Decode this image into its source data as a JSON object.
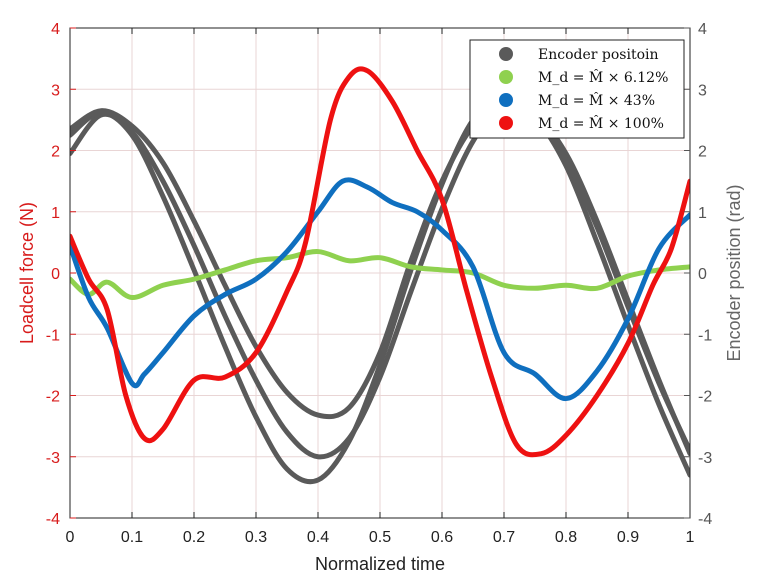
{
  "chart_data": {
    "type": "line",
    "xlabel": "Normalized time",
    "ylabel_left": "Loadcell force (N)",
    "ylabel_right": "Encoder position (rad)",
    "xlim": [
      0,
      1
    ],
    "ylim_left": [
      -4,
      4
    ],
    "ylim_right": [
      -4,
      4
    ],
    "xticks": [
      "0",
      "0.1",
      "0.2",
      "0.3",
      "0.4",
      "0.5",
      "0.6",
      "0.7",
      "0.8",
      "0.9",
      "1"
    ],
    "yticks_left": [
      "4",
      "3",
      "2",
      "1",
      "0",
      "-1",
      "-2",
      "-3",
      "-4"
    ],
    "yticks_right": [
      "4",
      "3",
      "2",
      "1",
      "0",
      "-1",
      "-2",
      "-3",
      "-4"
    ],
    "grid": true,
    "legend_position": "top-right",
    "legend": [
      {
        "label": "Encoder positoin",
        "color": "#5a5a5a"
      },
      {
        "label": "M_d = M̂ × 6.12%",
        "color": "#8fd14f"
      },
      {
        "label": "M_d = M̂ × 43%",
        "color": "#0f6fbf"
      },
      {
        "label": "M_d = M̂ × 100%",
        "color": "#ee1111"
      }
    ],
    "series": [
      {
        "axis": "right",
        "color": "#5a5a5a",
        "x": [
          0,
          0.05,
          0.1,
          0.15,
          0.2,
          0.25,
          0.3,
          0.35,
          0.4,
          0.45,
          0.5,
          0.55,
          0.6,
          0.65,
          0.7,
          0.75,
          0.8,
          0.85,
          0.9,
          0.95,
          1
        ],
        "values": [
          1.95,
          2.58,
          2.3,
          1.5,
          0.45,
          -0.7,
          -1.75,
          -2.6,
          -3.0,
          -2.7,
          -1.7,
          -0.3,
          1.05,
          2.15,
          2.75,
          2.6,
          1.95,
          0.85,
          -0.45,
          -1.75,
          -2.95
        ]
      },
      {
        "axis": "right",
        "color": "#5a5a5a",
        "x": [
          0,
          0.05,
          0.1,
          0.15,
          0.2,
          0.25,
          0.3,
          0.35,
          0.4,
          0.45,
          0.5,
          0.55,
          0.6,
          0.65,
          0.7,
          0.75,
          0.8,
          0.85,
          0.9,
          0.95,
          1
        ],
        "values": [
          2.25,
          2.62,
          2.25,
          1.25,
          0.05,
          -1.2,
          -2.35,
          -3.2,
          -3.38,
          -2.75,
          -1.5,
          0.05,
          1.45,
          2.5,
          2.9,
          2.55,
          1.75,
          0.5,
          -0.85,
          -2.15,
          -3.3
        ]
      },
      {
        "axis": "right",
        "color": "#5a5a5a",
        "x": [
          0,
          0.05,
          0.1,
          0.15,
          0.2,
          0.25,
          0.3,
          0.35,
          0.4,
          0.45,
          0.5,
          0.55,
          0.6,
          0.65,
          0.7,
          0.75,
          0.8,
          0.85,
          0.9,
          0.95,
          1
        ],
        "values": [
          2.35,
          2.65,
          2.4,
          1.8,
          0.85,
          -0.2,
          -1.2,
          -1.95,
          -2.32,
          -2.2,
          -1.3,
          0.2,
          1.5,
          2.4,
          2.75,
          2.5,
          1.85,
          0.75,
          -0.55,
          -1.8,
          -2.9
        ]
      },
      {
        "axis": "left",
        "name": "M_d = M̂ × 6.12%",
        "color": "#8fd14f",
        "x": [
          0,
          0.03,
          0.06,
          0.1,
          0.15,
          0.2,
          0.25,
          0.3,
          0.35,
          0.4,
          0.45,
          0.5,
          0.55,
          0.6,
          0.65,
          0.7,
          0.75,
          0.8,
          0.85,
          0.9,
          0.95,
          1
        ],
        "values": [
          -0.1,
          -0.35,
          -0.15,
          -0.4,
          -0.2,
          -0.1,
          0.05,
          0.2,
          0.25,
          0.35,
          0.2,
          0.25,
          0.1,
          0.05,
          0.0,
          -0.2,
          -0.25,
          -0.2,
          -0.25,
          -0.05,
          0.05,
          0.1
        ]
      },
      {
        "axis": "left",
        "name": "M_d = M̂ × 43%",
        "color": "#0f6fbf",
        "x": [
          0,
          0.03,
          0.06,
          0.1,
          0.12,
          0.15,
          0.2,
          0.25,
          0.3,
          0.35,
          0.4,
          0.44,
          0.48,
          0.52,
          0.56,
          0.6,
          0.65,
          0.7,
          0.75,
          0.8,
          0.85,
          0.9,
          0.95,
          1
        ],
        "values": [
          0.45,
          -0.4,
          -0.9,
          -1.8,
          -1.65,
          -1.3,
          -0.7,
          -0.35,
          -0.1,
          0.35,
          1.0,
          1.5,
          1.4,
          1.15,
          1.0,
          0.7,
          0.1,
          -1.3,
          -1.65,
          -2.05,
          -1.6,
          -0.75,
          0.4,
          0.95
        ]
      },
      {
        "axis": "left",
        "name": "M_d = M̂ × 100%",
        "color": "#ee1111",
        "x": [
          0,
          0.03,
          0.06,
          0.09,
          0.12,
          0.15,
          0.2,
          0.25,
          0.3,
          0.35,
          0.38,
          0.42,
          0.45,
          0.48,
          0.52,
          0.56,
          0.6,
          0.64,
          0.68,
          0.72,
          0.76,
          0.8,
          0.85,
          0.9,
          0.94,
          0.97,
          1
        ],
        "values": [
          0.6,
          -0.1,
          -0.6,
          -2.0,
          -2.7,
          -2.55,
          -1.75,
          -1.7,
          -1.3,
          -0.3,
          0.5,
          2.5,
          3.2,
          3.3,
          2.8,
          2.0,
          1.2,
          -0.3,
          -1.7,
          -2.8,
          -2.95,
          -2.65,
          -2.0,
          -1.15,
          -0.2,
          0.4,
          1.5
        ]
      }
    ]
  }
}
